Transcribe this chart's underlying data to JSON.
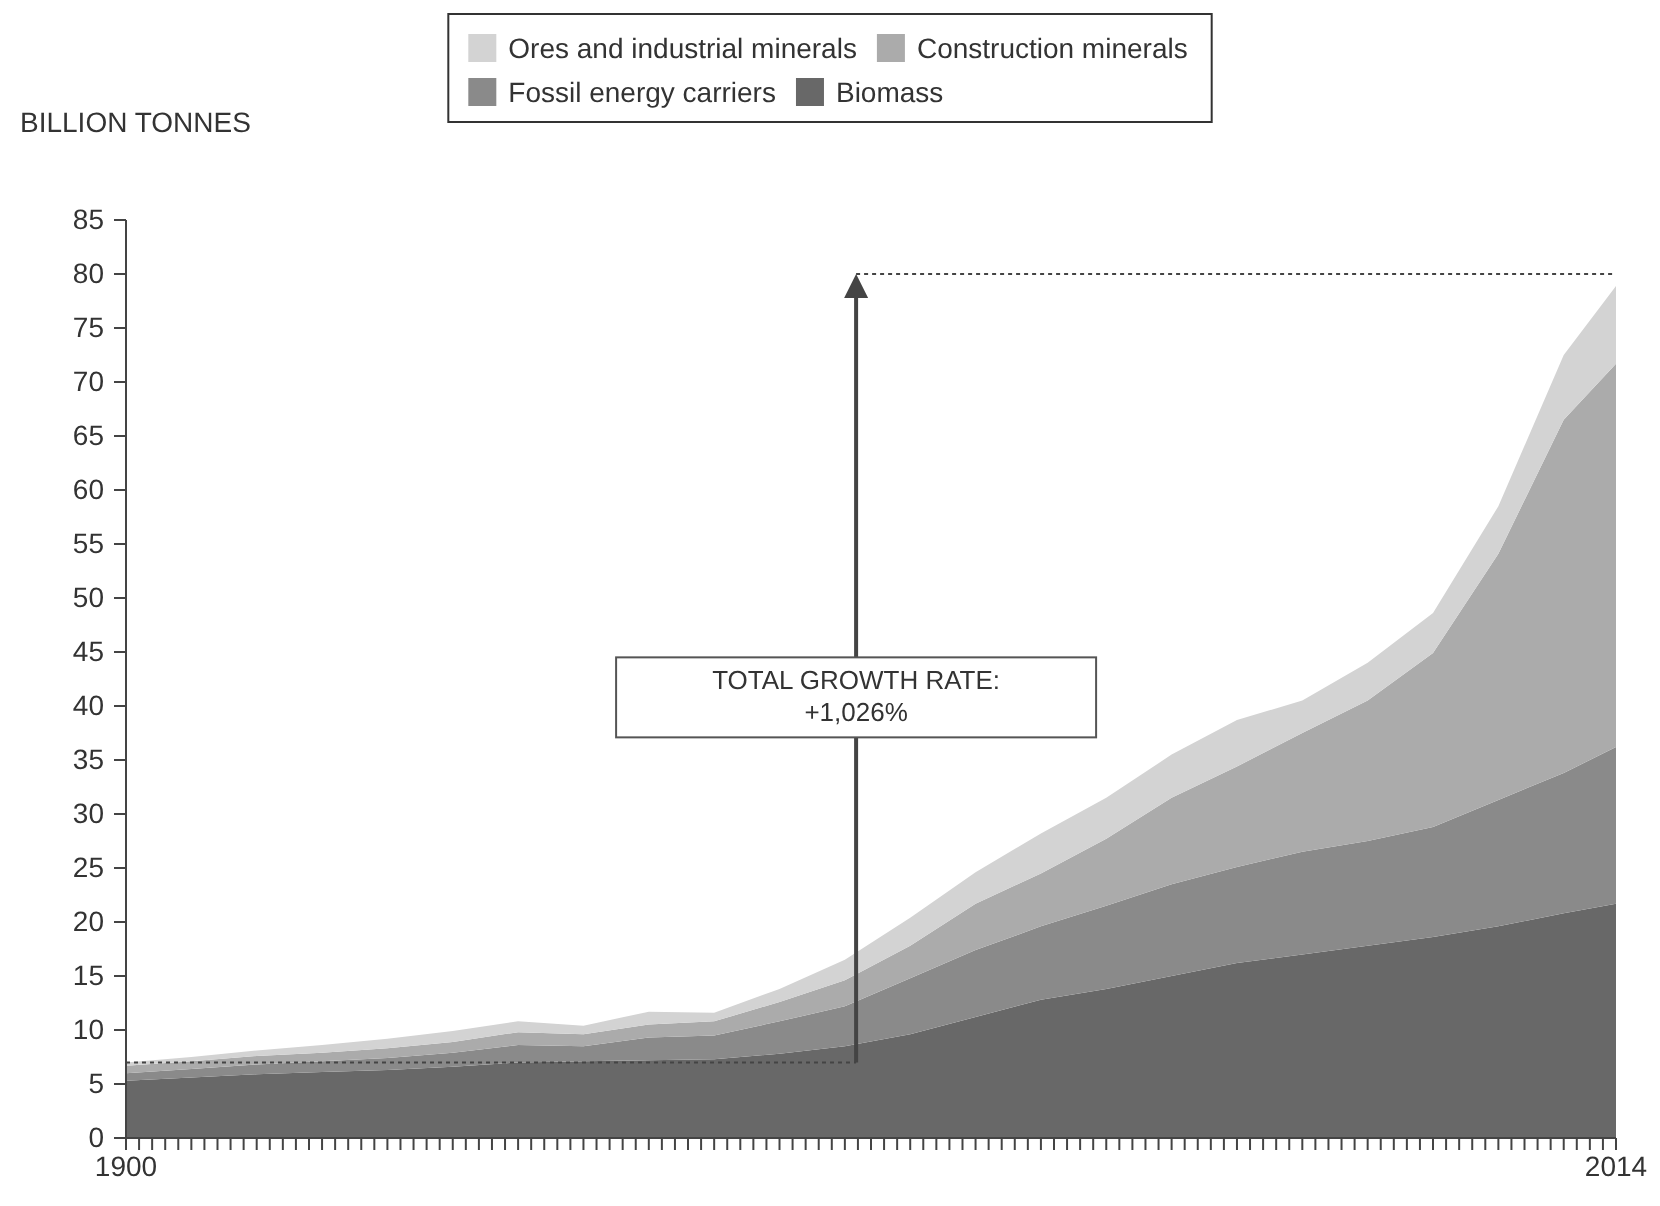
{
  "chart_data": {
    "type": "area",
    "stacked": true,
    "ylabel": "BILLION TONNES",
    "x": [
      1900,
      1905,
      1910,
      1915,
      1920,
      1925,
      1930,
      1935,
      1940,
      1945,
      1950,
      1955,
      1960,
      1965,
      1970,
      1975,
      1980,
      1985,
      1990,
      1995,
      2000,
      2005,
      2010,
      2014
    ],
    "series": [
      {
        "name": "Biomass",
        "color": "#686868",
        "values": [
          5.3,
          5.6,
          5.9,
          6.1,
          6.3,
          6.6,
          7.0,
          7.1,
          7.2,
          7.3,
          7.8,
          8.5,
          9.6,
          11.2,
          12.8,
          13.8,
          15.0,
          16.2,
          17.0,
          17.8,
          18.6,
          19.6,
          20.8,
          21.7
        ]
      },
      {
        "name": "Fossil energy carriers",
        "color": "#8a8a8a",
        "values": [
          0.7,
          0.8,
          0.9,
          1.0,
          1.1,
          1.3,
          1.6,
          1.4,
          2.1,
          2.2,
          3.0,
          3.7,
          5.2,
          6.2,
          6.8,
          7.7,
          8.5,
          8.9,
          9.5,
          9.7,
          10.2,
          11.7,
          13.0,
          14.5
        ]
      },
      {
        "name": "Construction minerals",
        "color": "#ababab",
        "values": [
          0.7,
          0.7,
          0.8,
          0.8,
          0.9,
          1.0,
          1.2,
          1.1,
          1.2,
          1.3,
          1.8,
          2.4,
          3.0,
          4.3,
          4.9,
          6.2,
          8.0,
          9.3,
          11.0,
          13.0,
          16.1,
          22.8,
          32.7,
          35.5
        ]
      },
      {
        "name": "Ores and industrial minerals",
        "color": "#d3d3d3",
        "values": [
          0.3,
          0.4,
          0.5,
          0.7,
          0.9,
          1.0,
          1.0,
          0.8,
          1.2,
          0.8,
          1.2,
          1.9,
          2.6,
          2.9,
          3.7,
          3.8,
          4.0,
          4.3,
          3.0,
          3.5,
          3.7,
          4.4,
          6.0,
          7.2
        ]
      }
    ],
    "xlim": [
      1900,
      2014
    ],
    "xticks": [
      1900,
      {
        "value": 1901,
        "label": null
      },
      {
        "value": 1902,
        "label": null
      },
      {
        "value": 1903,
        "label": null
      },
      {
        "value": 1904,
        "label": null
      },
      {
        "value": 1905,
        "label": null
      },
      {
        "value": 1906,
        "label": null
      },
      {
        "value": 1907,
        "label": null
      },
      {
        "value": 1908,
        "label": null
      },
      {
        "value": 1909,
        "label": null
      },
      {
        "value": 1910,
        "label": null
      },
      {
        "value": 1911,
        "label": null
      },
      {
        "value": 1912,
        "label": null
      },
      {
        "value": 1913,
        "label": null
      },
      {
        "value": 1914,
        "label": null
      },
      {
        "value": 1915,
        "label": null
      },
      {
        "value": 1916,
        "label": null
      },
      {
        "value": 1917,
        "label": null
      },
      {
        "value": 1918,
        "label": null
      },
      {
        "value": 1919,
        "label": null
      },
      {
        "value": 1920,
        "label": null
      },
      {
        "value": 1921,
        "label": null
      },
      {
        "value": 1922,
        "label": null
      },
      {
        "value": 1923,
        "label": null
      },
      {
        "value": 1924,
        "label": null
      },
      {
        "value": 1925,
        "label": null
      },
      {
        "value": 1926,
        "label": null
      },
      {
        "value": 1927,
        "label": null
      },
      {
        "value": 1928,
        "label": null
      },
      {
        "value": 1929,
        "label": null
      },
      {
        "value": 1930,
        "label": null
      },
      {
        "value": 1931,
        "label": null
      },
      {
        "value": 1932,
        "label": null
      },
      {
        "value": 1933,
        "label": null
      },
      {
        "value": 1934,
        "label": null
      },
      {
        "value": 1935,
        "label": null
      },
      {
        "value": 1936,
        "label": null
      },
      {
        "value": 1937,
        "label": null
      },
      {
        "value": 1938,
        "label": null
      },
      {
        "value": 1939,
        "label": null
      },
      {
        "value": 1940,
        "label": null
      },
      {
        "value": 1941,
        "label": null
      },
      {
        "value": 1942,
        "label": null
      },
      {
        "value": 1943,
        "label": null
      },
      {
        "value": 1944,
        "label": null
      },
      {
        "value": 1945,
        "label": null
      },
      {
        "value": 1946,
        "label": null
      },
      {
        "value": 1947,
        "label": null
      },
      {
        "value": 1948,
        "label": null
      },
      {
        "value": 1949,
        "label": null
      },
      {
        "value": 1950,
        "label": null
      },
      {
        "value": 1951,
        "label": null
      },
      {
        "value": 1952,
        "label": null
      },
      {
        "value": 1953,
        "label": null
      },
      {
        "value": 1954,
        "label": null
      },
      {
        "value": 1955,
        "label": null
      },
      {
        "value": 1956,
        "label": null
      },
      {
        "value": 1957,
        "label": null
      },
      {
        "value": 1958,
        "label": null
      },
      {
        "value": 1959,
        "label": null
      },
      {
        "value": 1960,
        "label": null
      },
      {
        "value": 1961,
        "label": null
      },
      {
        "value": 1962,
        "label": null
      },
      {
        "value": 1963,
        "label": null
      },
      {
        "value": 1964,
        "label": null
      },
      {
        "value": 1965,
        "label": null
      },
      {
        "value": 1966,
        "label": null
      },
      {
        "value": 1967,
        "label": null
      },
      {
        "value": 1968,
        "label": null
      },
      {
        "value": 1969,
        "label": null
      },
      {
        "value": 1970,
        "label": null
      },
      {
        "value": 1971,
        "label": null
      },
      {
        "value": 1972,
        "label": null
      },
      {
        "value": 1973,
        "label": null
      },
      {
        "value": 1974,
        "label": null
      },
      {
        "value": 1975,
        "label": null
      },
      {
        "value": 1976,
        "label": null
      },
      {
        "value": 1977,
        "label": null
      },
      {
        "value": 1978,
        "label": null
      },
      {
        "value": 1979,
        "label": null
      },
      {
        "value": 1980,
        "label": null
      },
      {
        "value": 1981,
        "label": null
      },
      {
        "value": 1982,
        "label": null
      },
      {
        "value": 1983,
        "label": null
      },
      {
        "value": 1984,
        "label": null
      },
      {
        "value": 1985,
        "label": null
      },
      {
        "value": 1986,
        "label": null
      },
      {
        "value": 1987,
        "label": null
      },
      {
        "value": 1988,
        "label": null
      },
      {
        "value": 1989,
        "label": null
      },
      {
        "value": 1990,
        "label": null
      },
      {
        "value": 1991,
        "label": null
      },
      {
        "value": 1992,
        "label": null
      },
      {
        "value": 1993,
        "label": null
      },
      {
        "value": 1994,
        "label": null
      },
      {
        "value": 1995,
        "label": null
      },
      {
        "value": 1996,
        "label": null
      },
      {
        "value": 1997,
        "label": null
      },
      {
        "value": 1998,
        "label": null
      },
      {
        "value": 1999,
        "label": null
      },
      {
        "value": 2000,
        "label": null
      },
      {
        "value": 2001,
        "label": null
      },
      {
        "value": 2002,
        "label": null
      },
      {
        "value": 2003,
        "label": null
      },
      {
        "value": 2004,
        "label": null
      },
      {
        "value": 2005,
        "label": null
      },
      {
        "value": 2006,
        "label": null
      },
      {
        "value": 2007,
        "label": null
      },
      {
        "value": 2008,
        "label": null
      },
      {
        "value": 2009,
        "label": null
      },
      {
        "value": 2010,
        "label": null
      },
      {
        "value": 2011,
        "label": null
      },
      {
        "value": 2012,
        "label": null
      },
      {
        "value": 2013,
        "label": null
      },
      2014
    ],
    "ylim": [
      0,
      85
    ],
    "yticks": [
      0,
      5,
      10,
      15,
      20,
      25,
      30,
      35,
      40,
      45,
      50,
      55,
      60,
      65,
      70,
      75,
      80,
      85
    ],
    "legend": "top",
    "ref_lines": [
      {
        "axis": "y",
        "value": 7.0,
        "line_style": "dotted"
      },
      {
        "axis": "y",
        "value": 80,
        "line_style": "dotted"
      }
    ],
    "annotations": [
      "TOTAL GROWTH RATE:\n+1,026%"
    ]
  }
}
